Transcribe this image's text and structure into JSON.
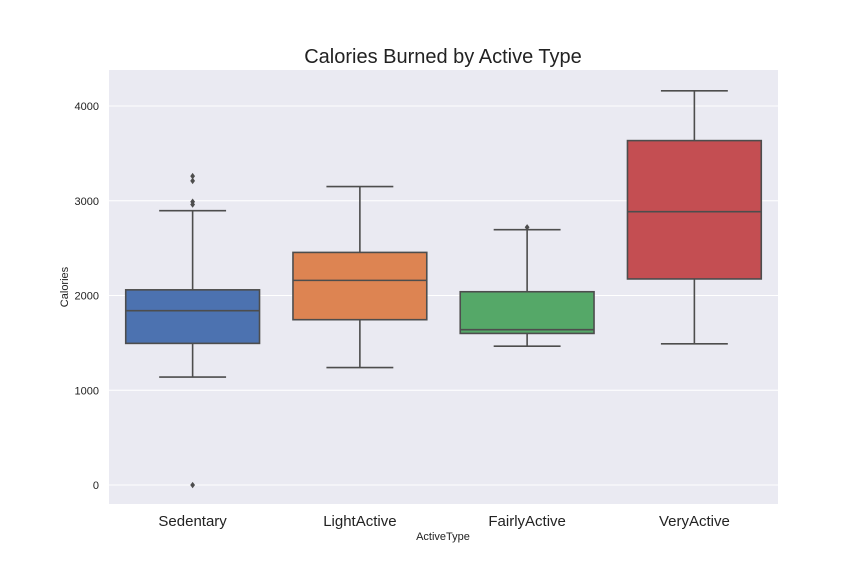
{
  "chart_data": {
    "type": "box",
    "title": "Calories Burned by Active Type",
    "xlabel": "ActiveType",
    "ylabel": "Calories",
    "ylim": [
      -200,
      4380
    ],
    "yticks": [
      0,
      1000,
      2000,
      3000,
      4000
    ],
    "grid": true,
    "categories": [
      "Sedentary",
      "LightActive",
      "FairlyActive",
      "VeryActive"
    ],
    "boxes": [
      {
        "category": "Sedentary",
        "whisker_low": 1140,
        "q1": 1495,
        "median": 1840,
        "q3": 2060,
        "whisker_high": 2895,
        "outliers": [
          0,
          2960,
          2990,
          3210,
          3260
        ],
        "color": "#4C72B0"
      },
      {
        "category": "LightActive",
        "whisker_low": 1240,
        "q1": 1745,
        "median": 2160,
        "q3": 2455,
        "whisker_high": 3150,
        "outliers": [],
        "color": "#DD8452"
      },
      {
        "category": "FairlyActive",
        "whisker_low": 1465,
        "q1": 1600,
        "median": 1640,
        "q3": 2040,
        "whisker_high": 2695,
        "outliers": [
          2720
        ],
        "color": "#55A868"
      },
      {
        "category": "VeryActive",
        "whisker_low": 1490,
        "q1": 2175,
        "median": 2885,
        "q3": 3635,
        "whisker_high": 4160,
        "outliers": [],
        "color": "#C44E52"
      }
    ],
    "colors": {
      "plot_background": "#EAEAF2",
      "grid": "#FFFFFF",
      "box_edge": "#4D4D4D"
    }
  }
}
